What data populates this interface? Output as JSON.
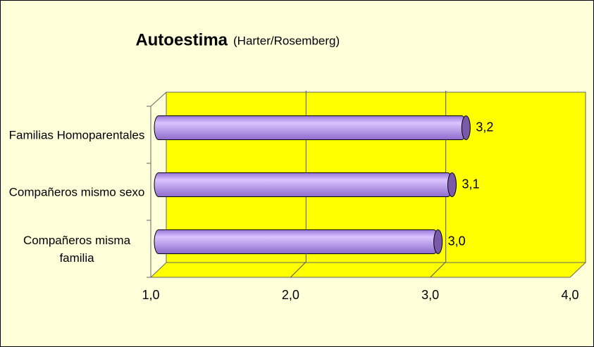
{
  "chart_data": {
    "type": "bar",
    "orientation": "horizontal",
    "title": "Autoestima",
    "subtitle": "(Harter/Rosemberg)",
    "categories": [
      "Familias Homoparentales",
      "Compañeros mismo sexo",
      "Compañeros misma familia"
    ],
    "values": [
      3.2,
      3.1,
      3.0
    ],
    "value_labels": [
      "3,2",
      "3,1",
      "3,0"
    ],
    "color": "#b895f5",
    "xlim": [
      1,
      4
    ],
    "xticks": [
      {
        "value": 1,
        "label": "1,0"
      },
      {
        "value": 2,
        "label": "2,0"
      },
      {
        "value": 3,
        "label": "3,0"
      },
      {
        "value": 4,
        "label": "4,0"
      }
    ],
    "grid": true
  }
}
